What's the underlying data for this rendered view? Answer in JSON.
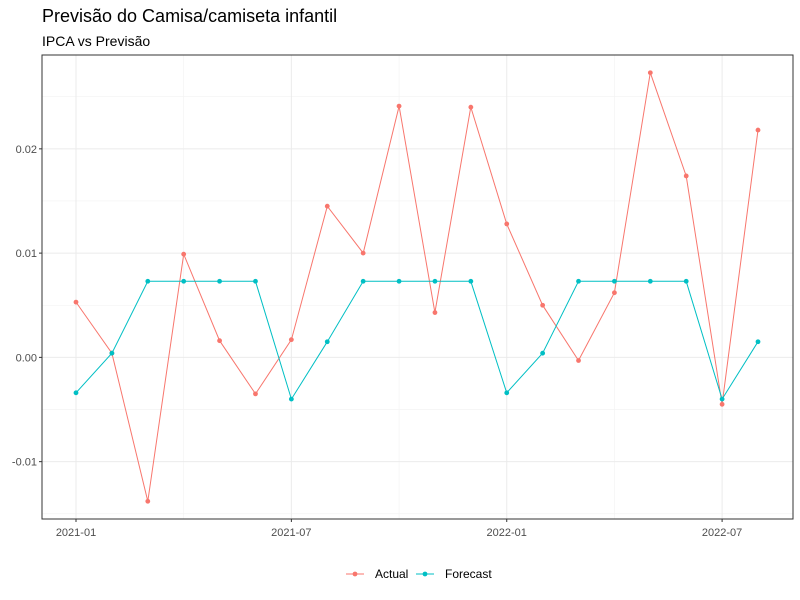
{
  "chart_data": {
    "type": "line",
    "title": "Previsão do Camisa/camiseta infantil",
    "subtitle": "IPCA vs Previsão",
    "xlabel": "",
    "ylabel": "",
    "x": [
      "2021-01",
      "2021-02",
      "2021-03",
      "2021-04",
      "2021-05",
      "2021-06",
      "2021-07",
      "2021-08",
      "2021-09",
      "2021-10",
      "2021-11",
      "2021-12",
      "2022-01",
      "2022-02",
      "2022-03",
      "2022-04",
      "2022-05",
      "2022-06",
      "2022-07",
      "2022-08"
    ],
    "x_ticks": [
      "2021-01",
      "2021-07",
      "2022-01",
      "2022-07"
    ],
    "y_ticks": [
      -0.01,
      0.0,
      0.01,
      0.02
    ],
    "y_tick_labels": [
      "-0.01",
      "0.00",
      "0.01",
      "0.02"
    ],
    "ylim": [
      -0.0155,
      0.029
    ],
    "grid": true,
    "legend_position": "bottom",
    "series": [
      {
        "name": "Actual",
        "color": "#F8766D",
        "values": [
          0.0053,
          0.0004,
          -0.0138,
          0.0099,
          0.0016,
          -0.0035,
          0.0017,
          0.0145,
          0.01,
          0.0241,
          0.0043,
          0.024,
          0.0128,
          0.005,
          -0.0003,
          0.0062,
          0.0273,
          0.0174,
          -0.0045,
          0.0218
        ]
      },
      {
        "name": "Forecast",
        "color": "#00BFC4",
        "values": [
          -0.0034,
          0.0004,
          0.0073,
          0.0073,
          0.0073,
          0.0073,
          -0.004,
          0.0015,
          0.0073,
          0.0073,
          0.0073,
          0.0073,
          -0.0034,
          0.0004,
          0.0073,
          0.0073,
          0.0073,
          0.0073,
          -0.004,
          0.0015
        ]
      }
    ]
  }
}
